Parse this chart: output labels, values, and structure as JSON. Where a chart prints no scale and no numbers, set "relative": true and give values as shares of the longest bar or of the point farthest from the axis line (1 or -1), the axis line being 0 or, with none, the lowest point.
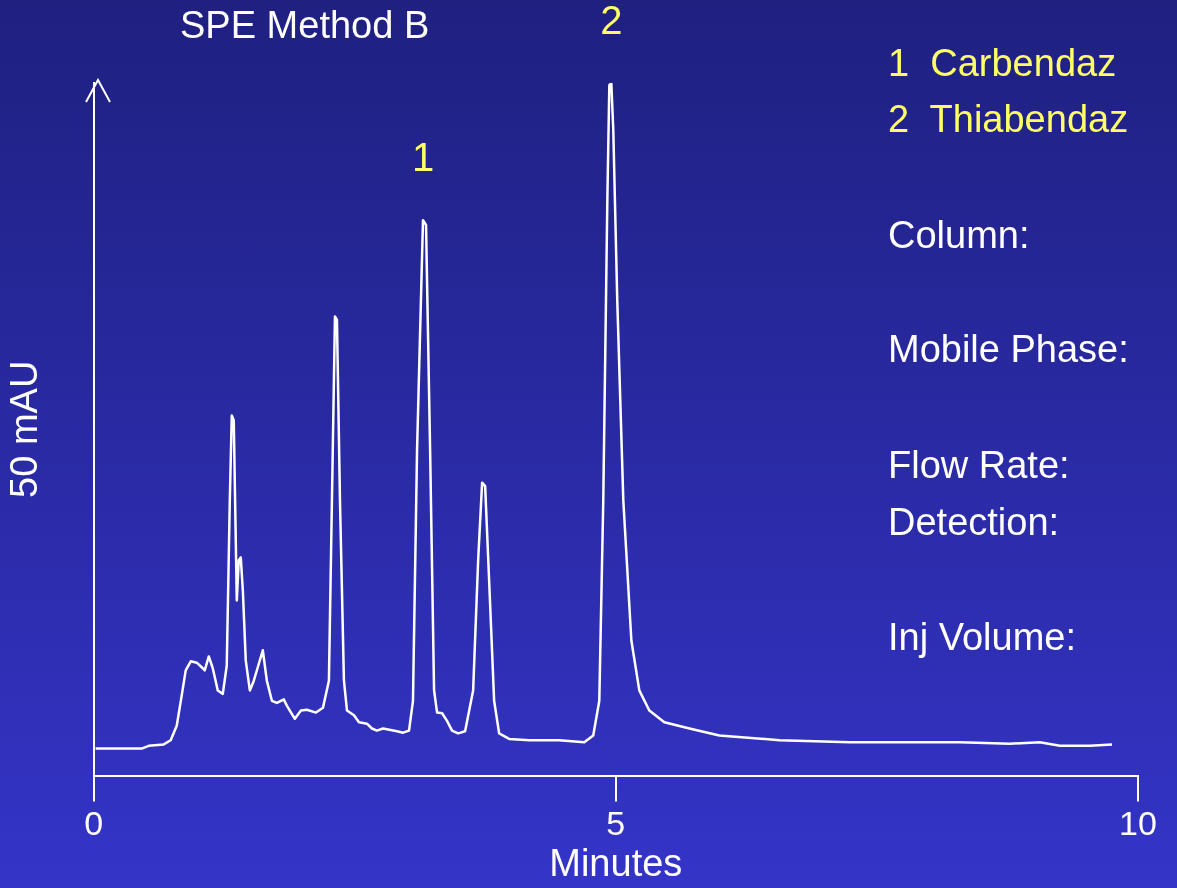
{
  "chart_data": {
    "type": "line",
    "title": "SPE Method B",
    "xlabel": "Minutes",
    "ylabel": "50 mAU",
    "relative": true,
    "marker": "none",
    "xlim": [
      0,
      10
    ],
    "xticks": [
      0,
      5,
      10
    ],
    "x": [
      0.019,
      0.46,
      0.527,
      0.671,
      0.738,
      0.796,
      0.844,
      0.882,
      0.93,
      0.988,
      1.045,
      1.064,
      1.103,
      1.141,
      1.189,
      1.237,
      1.275,
      1.304,
      1.323,
      1.342,
      1.371,
      1.39,
      1.409,
      1.429,
      1.457,
      1.496,
      1.534,
      1.62,
      1.659,
      1.707,
      1.755,
      1.822,
      1.85,
      1.927,
      1.985,
      2.042,
      2.129,
      2.196,
      2.253,
      2.282,
      2.311,
      2.33,
      2.359,
      2.397,
      2.426,
      2.493,
      2.541,
      2.617,
      2.665,
      2.713,
      2.771,
      2.905,
      2.963,
      3.02,
      3.058,
      3.097,
      3.154,
      3.183,
      3.222,
      3.26,
      3.289,
      3.337,
      3.384,
      3.432,
      3.49,
      3.557,
      3.634,
      3.682,
      3.72,
      3.749,
      3.787,
      3.835,
      3.883,
      3.979,
      4.171,
      4.458,
      4.698,
      4.784,
      4.842,
      4.88,
      4.919,
      4.938,
      4.957,
      4.976,
      5.014,
      5.072,
      5.149,
      5.225,
      5.321,
      5.465,
      5.705,
      5.992,
      6.568,
      7.239,
      7.718,
      8.293,
      8.773,
      9.06,
      9.252,
      9.54,
      9.751
    ],
    "series": [
      {
        "color": "#ffffff",
        "values": [
          0.039,
          0.039,
          0.043,
          0.045,
          0.051,
          0.072,
          0.116,
          0.152,
          0.165,
          0.163,
          0.155,
          0.152,
          0.172,
          0.155,
          0.123,
          0.118,
          0.159,
          0.397,
          0.52,
          0.513,
          0.253,
          0.311,
          0.315,
          0.267,
          0.166,
          0.123,
          0.137,
          0.181,
          0.137,
          0.108,
          0.105,
          0.11,
          0.101,
          0.082,
          0.094,
          0.095,
          0.091,
          0.098,
          0.137,
          0.397,
          0.663,
          0.658,
          0.397,
          0.137,
          0.094,
          0.087,
          0.077,
          0.075,
          0.068,
          0.065,
          0.068,
          0.064,
          0.062,
          0.065,
          0.108,
          0.47,
          0.802,
          0.795,
          0.47,
          0.123,
          0.091,
          0.09,
          0.079,
          0.065,
          0.061,
          0.064,
          0.123,
          0.311,
          0.423,
          0.418,
          0.282,
          0.108,
          0.061,
          0.053,
          0.051,
          0.051,
          0.048,
          0.058,
          0.108,
          0.397,
          0.831,
          0.997,
          1,
          0.932,
          0.686,
          0.397,
          0.195,
          0.123,
          0.094,
          0.077,
          0.068,
          0.058,
          0.051,
          0.048,
          0.048,
          0.048,
          0.046,
          0.048,
          0.043,
          0.043,
          0.045
        ]
      }
    ],
    "annotations": [
      {
        "text": "1",
        "x": 3.154,
        "y": 0.802
      },
      {
        "text": "2",
        "x": 4.957,
        "y": 1
      },
      "1  Carbendaz",
      "2  Thiabendaz",
      "Column:",
      "Mobile Phase:",
      "Flow Rate:",
      "Detection:",
      "Inj Volume:"
    ]
  }
}
